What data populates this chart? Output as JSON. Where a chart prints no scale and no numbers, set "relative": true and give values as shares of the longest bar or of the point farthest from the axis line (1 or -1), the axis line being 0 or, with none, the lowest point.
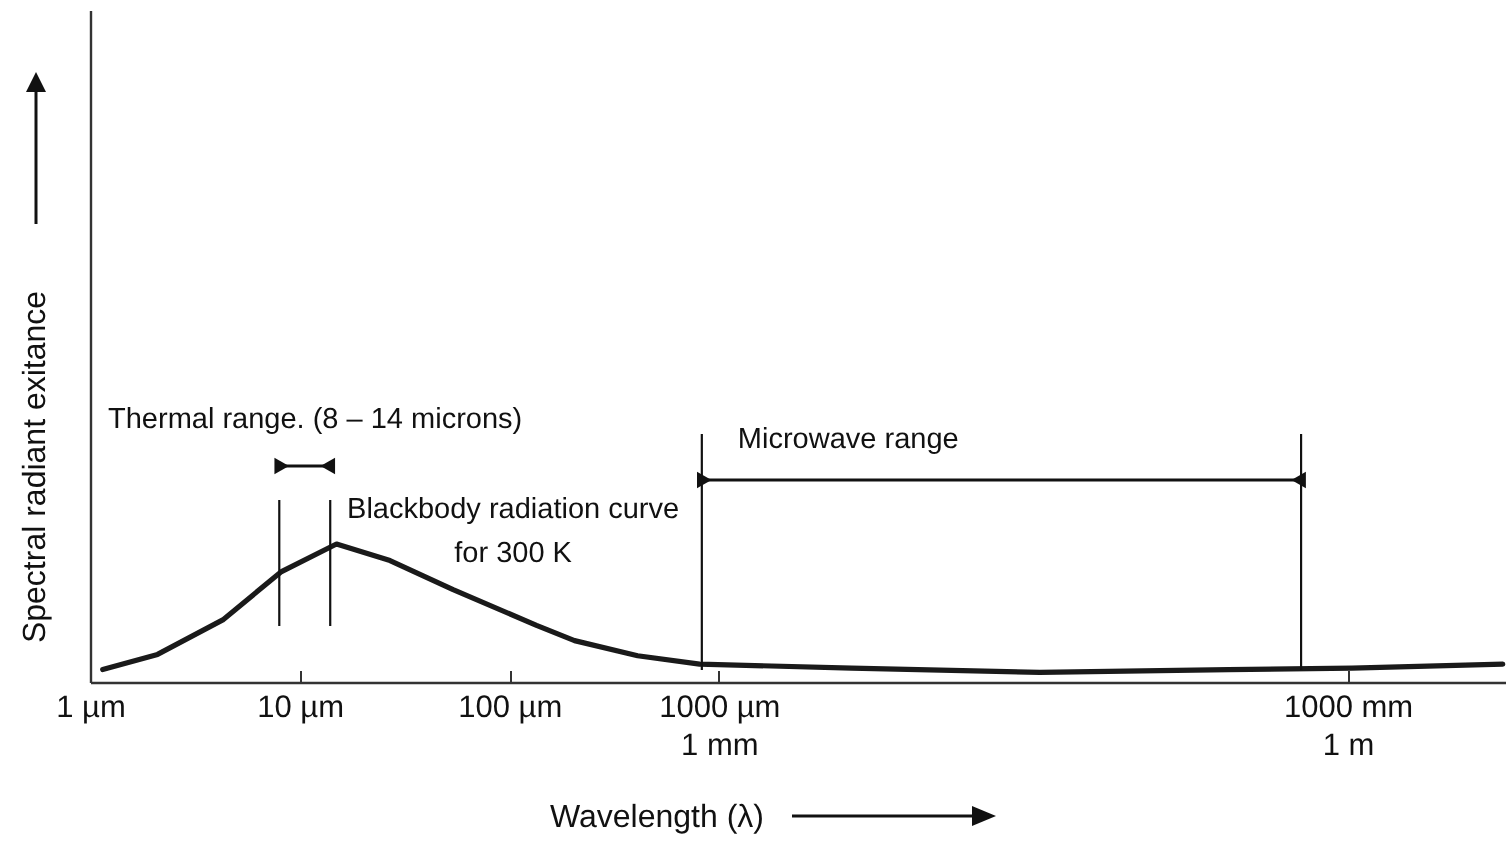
{
  "chart_data": {
    "type": "line",
    "relative": true,
    "xlabel": "Wavelength (λ)",
    "ylabel": "Spectral radiant exitance",
    "log": "x",
    "x": [
      1.15,
      2.1,
      4.3,
      8.2,
      15,
      27,
      54,
      135,
      205,
      410,
      810,
      4300,
      34000,
      270000,
      1050000,
      5500000
    ],
    "series": [
      {
        "name": "Blackbody radiation curve\nfor 300 K",
        "color": "#1a1a1a",
        "values": [
          0.09,
          0.2,
          0.45,
          0.8,
          1,
          0.88,
          0.67,
          0.41,
          0.3,
          0.19,
          0.13,
          0.1,
          0.07,
          0.09,
          0.1,
          0.13
        ]
      }
    ],
    "xlim": [
      1,
      5700000
    ],
    "xticks": [
      {
        "value": 1,
        "label": "1 µm"
      },
      {
        "value": 10,
        "label": "10 µm"
      },
      {
        "value": 100,
        "label": "100 µm"
      },
      {
        "value": 1000,
        "label": "1000 µm\n1 mm"
      },
      {
        "value": 1000000,
        "label": "1000 mm\n1 m"
      }
    ],
    "ref_lines": [
      {
        "axis": "x",
        "value": 8
      },
      {
        "axis": "x",
        "value": 14
      },
      {
        "axis": "x",
        "value": 830
      },
      {
        "axis": "x",
        "value": 600000
      }
    ],
    "annotations": [
      "Thermal range. (8 – 14 microns)",
      "Microwave range"
    ],
    "marker": "none",
    "line_style": "solid"
  }
}
